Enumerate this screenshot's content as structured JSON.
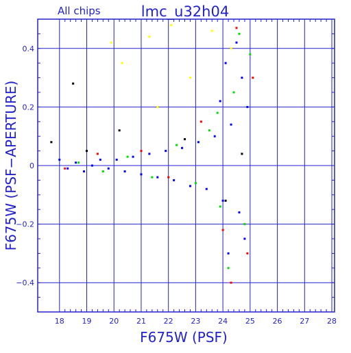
{
  "chart_data": {
    "type": "scatter",
    "title": "lmc_u32h04",
    "subtitle": "All chips",
    "xlabel": "F675W (PSF)",
    "ylabel": "F675W (PSF−APERTURE)",
    "xlim": [
      17.2,
      28.1
    ],
    "ylim": [
      -0.5,
      0.5
    ],
    "xticks": [
      18,
      19,
      20,
      21,
      22,
      23,
      24,
      25,
      26,
      27,
      28
    ],
    "yticks": [
      -0.4,
      -0.2,
      0,
      0.2,
      0.4
    ],
    "ytick_labels": [
      "−0.4",
      "−0.2",
      "0",
      "0.2",
      "0.4"
    ],
    "grid": true,
    "legend": "none",
    "colors": {
      "axis": "#2222cc",
      "grid": "#2222cc",
      "text": "#2222cc",
      "point_palette": [
        "#0000ff",
        "#00dd00",
        "#ff0000",
        "#000000",
        "#ffff00"
      ]
    },
    "series": [
      {
        "color": "#0000ff",
        "points": [
          [
            18.0,
            0.02
          ],
          [
            18.3,
            -0.01
          ],
          [
            18.6,
            0.01
          ],
          [
            18.9,
            -0.02
          ],
          [
            19.2,
            0.0
          ],
          [
            19.5,
            0.02
          ],
          [
            19.8,
            -0.01
          ],
          [
            20.1,
            0.02
          ],
          [
            20.4,
            -0.02
          ],
          [
            20.7,
            0.03
          ],
          [
            21.0,
            -0.03
          ],
          [
            21.3,
            0.04
          ],
          [
            21.6,
            -0.04
          ],
          [
            21.9,
            0.05
          ],
          [
            22.2,
            -0.05
          ],
          [
            22.5,
            0.06
          ],
          [
            22.8,
            -0.07
          ],
          [
            23.1,
            0.08
          ],
          [
            23.4,
            -0.08
          ],
          [
            23.7,
            0.1
          ],
          [
            24.0,
            -0.12
          ],
          [
            24.3,
            0.14
          ],
          [
            24.6,
            -0.16
          ],
          [
            24.9,
            0.2
          ],
          [
            24.1,
            0.35
          ],
          [
            24.5,
            0.42
          ],
          [
            24.8,
            -0.25
          ],
          [
            24.2,
            -0.3
          ],
          [
            23.9,
            0.22
          ],
          [
            24.7,
            0.3
          ]
        ]
      },
      {
        "color": "#00dd00",
        "points": [
          [
            18.7,
            0.01
          ],
          [
            19.6,
            -0.02
          ],
          [
            20.5,
            0.03
          ],
          [
            21.4,
            -0.04
          ],
          [
            22.3,
            0.07
          ],
          [
            23.0,
            -0.06
          ],
          [
            23.5,
            0.12
          ],
          [
            23.9,
            -0.14
          ],
          [
            24.4,
            0.25
          ],
          [
            24.8,
            -0.2
          ],
          [
            25.0,
            0.38
          ],
          [
            24.2,
            -0.35
          ],
          [
            23.8,
            0.18
          ],
          [
            24.6,
            0.45
          ]
        ]
      },
      {
        "color": "#ff0000",
        "points": [
          [
            18.2,
            -0.01
          ],
          [
            19.4,
            0.04
          ],
          [
            21.0,
            0.05
          ],
          [
            22.0,
            -0.04
          ],
          [
            23.2,
            0.15
          ],
          [
            24.0,
            -0.22
          ],
          [
            24.5,
            0.47
          ],
          [
            24.9,
            -0.3
          ],
          [
            25.1,
            0.3
          ],
          [
            24.3,
            -0.4
          ]
        ]
      },
      {
        "color": "#000000",
        "points": [
          [
            17.7,
            0.08
          ],
          [
            18.5,
            0.28
          ],
          [
            19.0,
            0.05
          ],
          [
            20.2,
            0.12
          ],
          [
            22.6,
            0.09
          ],
          [
            24.1,
            -0.12
          ],
          [
            24.7,
            0.04
          ]
        ]
      },
      {
        "color": "#ffff00",
        "points": [
          [
            19.9,
            0.42
          ],
          [
            20.3,
            0.35
          ],
          [
            21.3,
            0.44
          ],
          [
            21.6,
            0.2
          ],
          [
            22.1,
            0.48
          ],
          [
            22.8,
            0.3
          ],
          [
            23.6,
            0.46
          ],
          [
            24.3,
            0.4
          ]
        ]
      }
    ]
  }
}
